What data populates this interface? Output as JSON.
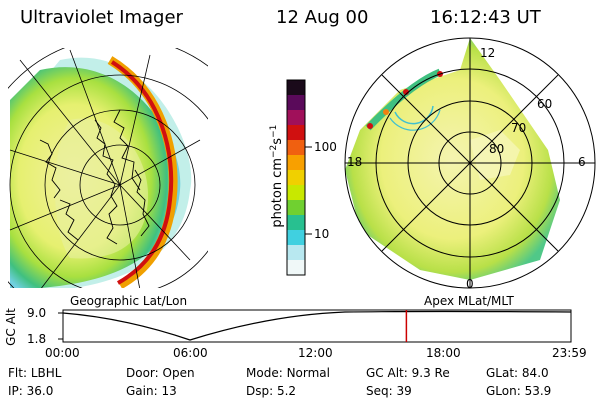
{
  "header": {
    "instrument": "Ultraviolet Imager",
    "date": "12 Aug 00",
    "time": "16:12:43 UT"
  },
  "colorbar": {
    "unit_prefix": "photon cm",
    "unit_exp1": "−2",
    "unit_mid": "s",
    "unit_exp2": "−1",
    "ticks": [
      "100",
      "10"
    ],
    "colors": [
      "#1a0a1a",
      "#5a0a5a",
      "#a0105a",
      "#d01010",
      "#f06010",
      "#f8a000",
      "#f0d000",
      "#c8e800",
      "#70d030",
      "#28c090",
      "#40d0e0",
      "#b8e8f0",
      "#f0f8f8"
    ]
  },
  "left_map": {
    "caption": "Geographic Lat/Lon"
  },
  "right_map": {
    "caption": "Apex MLat/MLT",
    "mlt_labels": {
      "top": "12",
      "left": "18",
      "right": "6",
      "bottom": "0"
    },
    "lat_labels": [
      "60",
      "70",
      "80"
    ]
  },
  "altitude_strip": {
    "axis_label": "GC Alt",
    "y_ticks": [
      "9.0",
      "1.8"
    ],
    "x_ticks": [
      "00:00",
      "06:00",
      "12:00",
      "18:00",
      "23:59"
    ],
    "current_time_marker": "16:12:43",
    "marker_color": "#cc0000"
  },
  "status": {
    "row1": [
      {
        "label": "Flt:",
        "value": "LBHL"
      },
      {
        "label": "Door:",
        "value": "Open"
      },
      {
        "label": "Mode:",
        "value": "Normal"
      },
      {
        "label": "GC Alt:",
        "value": "9.3 Re"
      },
      {
        "label": "GLat:",
        "value": "84.0"
      }
    ],
    "row2": [
      {
        "label": "IP:",
        "value": "36.0"
      },
      {
        "label": "Gain:",
        "value": "13"
      },
      {
        "label": "Dsp:",
        "value": "5.2"
      },
      {
        "label": "Seq:",
        "value": "39"
      },
      {
        "label": "GLon:",
        "value": "53.9"
      }
    ]
  }
}
